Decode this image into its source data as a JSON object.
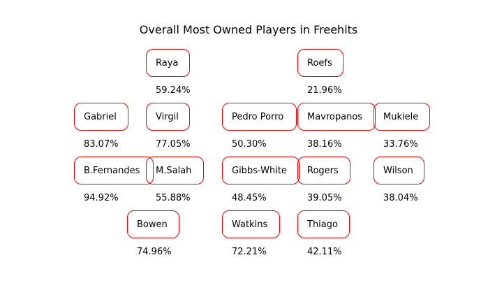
{
  "chart_data": {
    "type": "table",
    "title": "Overall Most Owned Players in Freehits",
    "players": [
      {
        "name": "Raya",
        "percent": "59.24%"
      },
      {
        "name": "Roefs",
        "percent": "21.96%"
      },
      {
        "name": "Gabriel",
        "percent": "83.07%"
      },
      {
        "name": "Virgil",
        "percent": "77.05%"
      },
      {
        "name": "Pedro Porro",
        "percent": "50.30%"
      },
      {
        "name": "Mavropanos",
        "percent": "38.16%"
      },
      {
        "name": "Mukiele",
        "percent": "33.76%"
      },
      {
        "name": "B.Fernandes",
        "percent": "94.92%"
      },
      {
        "name": "M.Salah",
        "percent": "55.88%"
      },
      {
        "name": "Gibbs-White",
        "percent": "48.45%"
      },
      {
        "name": "Rogers",
        "percent": "39.05%"
      },
      {
        "name": "Wilson",
        "percent": "38.04%"
      },
      {
        "name": "Bowen",
        "percent": "74.96%"
      },
      {
        "name": "Watkins",
        "percent": "72.21%"
      },
      {
        "name": "Thiago",
        "percent": "42.11%"
      }
    ],
    "box_color": "#ff0000"
  }
}
